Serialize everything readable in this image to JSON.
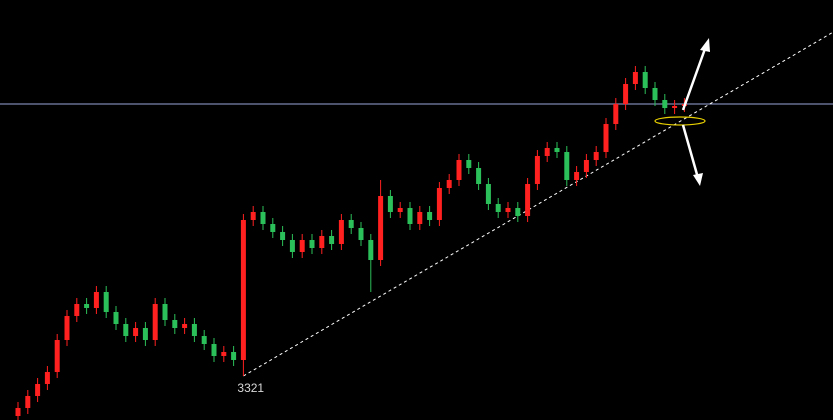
{
  "chart_data": {
    "type": "candlestick",
    "open": [
      3311,
      3313,
      3316,
      3319,
      3322,
      3330,
      3336,
      3339,
      3338,
      3342,
      3337,
      3334,
      3331,
      3333,
      3330,
      3339,
      3335,
      3333,
      3334,
      3331,
      3329,
      3326,
      3327,
      3325,
      3360,
      3362,
      3359,
      3357,
      3355,
      3352,
      3355,
      3353,
      3356,
      3354,
      3360,
      3358,
      3355,
      3350,
      3366,
      3362,
      3363,
      3359,
      3362,
      3360,
      3368,
      3370,
      3375,
      3373,
      3369,
      3364,
      3362,
      3363,
      3361,
      3369,
      3376,
      3378,
      3377,
      3370,
      3372,
      3375,
      3377,
      3384,
      3389,
      3394,
      3397,
      3393,
      3390,
      3388,
      3388.5
    ],
    "high": [
      3314.5,
      3317.5,
      3320.5,
      3323.5,
      3331.5,
      3337.5,
      3340.5,
      3340.5,
      3343.5,
      3343.5,
      3338.5,
      3335.5,
      3334.5,
      3334.5,
      3340.5,
      3340.5,
      3336.5,
      3335.5,
      3335.5,
      3332.5,
      3330.5,
      3328.5,
      3328.5,
      3361.5,
      3363.5,
      3363.5,
      3360.5,
      3358.5,
      3356.5,
      3356.5,
      3356.5,
      3357.5,
      3357.5,
      3361.5,
      3361.5,
      3359.5,
      3356.5,
      3370,
      3367.5,
      3364.5,
      3364.5,
      3363.5,
      3363.5,
      3369.5,
      3371.5,
      3376.5,
      3376.5,
      3374.5,
      3370.5,
      3365.5,
      3364.5,
      3364.5,
      3370.5,
      3377.5,
      3379.5,
      3379.5,
      3378.5,
      3373.5,
      3376.5,
      3378.5,
      3385.5,
      3390.5,
      3395.5,
      3398.5,
      3398.5,
      3394.5,
      3391.5,
      3390,
      3390.5
    ],
    "low": [
      3309.5,
      3311.5,
      3314.5,
      3317.5,
      3320.5,
      3328.5,
      3334.5,
      3336.5,
      3336.5,
      3335.5,
      3332.5,
      3329.5,
      3329.5,
      3328.5,
      3328.5,
      3333.5,
      3331.5,
      3331.5,
      3329.5,
      3327.5,
      3324.5,
      3324.5,
      3323.5,
      3321,
      3358.5,
      3357.5,
      3355.5,
      3353.5,
      3350.5,
      3350.5,
      3351.5,
      3351.5,
      3352.5,
      3352.5,
      3356.5,
      3353.5,
      3342,
      3348.5,
      3360.5,
      3360.5,
      3357.5,
      3357.5,
      3358.5,
      3358.5,
      3366.5,
      3368.5,
      3371.5,
      3367.5,
      3362.5,
      3360.5,
      3360.5,
      3359.5,
      3359.5,
      3367.5,
      3374.5,
      3375.5,
      3368.5,
      3368.5,
      3370.5,
      3373.5,
      3375.5,
      3382.5,
      3387.5,
      3392.5,
      3391.5,
      3388.5,
      3386.5,
      3386.5,
      3387
    ],
    "close": [
      3313,
      3316,
      3319,
      3322,
      3330,
      3336,
      3339,
      3338,
      3342,
      3337,
      3334,
      3331,
      3333,
      3330,
      3339,
      3335,
      3333,
      3334,
      3331,
      3329,
      3326,
      3327,
      3325,
      3360,
      3362,
      3359,
      3357,
      3355,
      3352,
      3355,
      3353,
      3356,
      3354,
      3360,
      3358,
      3355,
      3350,
      3366,
      3362,
      3363,
      3359,
      3362,
      3360,
      3368,
      3370,
      3375,
      3373,
      3369,
      3364,
      3362,
      3363,
      3361,
      3369,
      3376,
      3378,
      3377,
      3370,
      3372,
      3375,
      3377,
      3384,
      3389,
      3394,
      3397,
      3393,
      3390,
      3388,
      3388.5,
      3389
    ],
    "up_color": "#ff2020",
    "down_color": "#2cc05a",
    "ylim": [
      3310,
      3415
    ],
    "hline": 3389,
    "hline_color": "#9aa6d8",
    "trendline": {
      "from": [
        23,
        3321
      ],
      "to": [
        83.2,
        3407
      ]
    },
    "labeled_low": 23
  }
}
